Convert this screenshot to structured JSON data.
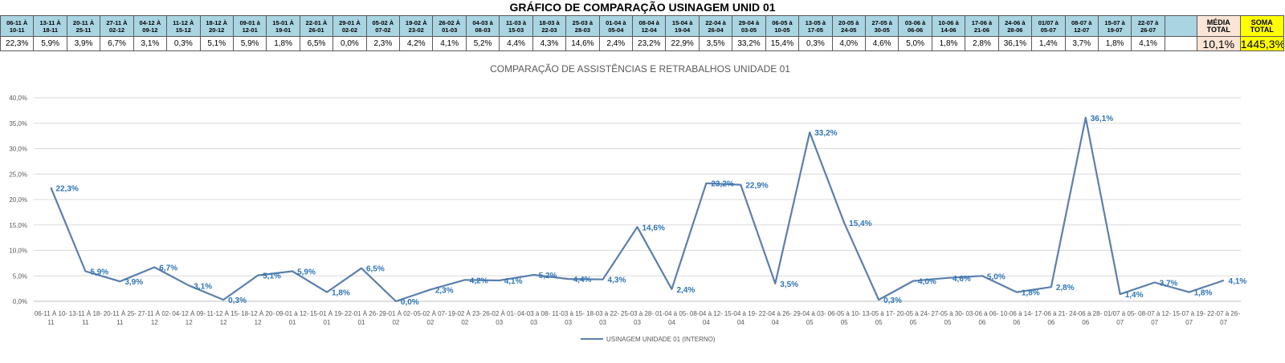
{
  "page_title": "GRÁFICO DE COMPARAÇÃO USINAGEM UNID 01",
  "table": {
    "headers": [
      [
        "06-11 À",
        "10-11"
      ],
      [
        "13-11 À",
        "18-11"
      ],
      [
        "20-11 À",
        "25-11"
      ],
      [
        "27-11 À",
        "02-12"
      ],
      [
        "04-12 À",
        "09-12"
      ],
      [
        "11-12 À",
        "15-12"
      ],
      [
        "18-12 À",
        "20-12"
      ],
      [
        "09-01 à",
        "12-01"
      ],
      [
        "15-01 À",
        "19-01"
      ],
      [
        "22-01 À",
        "26-01"
      ],
      [
        "29-01 À",
        "02-02"
      ],
      [
        "05-02 À",
        "07-02"
      ],
      [
        "19-02 À",
        "23-02"
      ],
      [
        "26-02 À",
        "01-03"
      ],
      [
        "04-03 à",
        "08-03"
      ],
      [
        "11-03 à",
        "15-03"
      ],
      [
        "18-03 à",
        "22-03"
      ],
      [
        "25-03 à",
        "28-03"
      ],
      [
        "01-04 à",
        "05-04"
      ],
      [
        "08-04 à",
        "12-04"
      ],
      [
        "15-04 à",
        "19-04"
      ],
      [
        "22-04 à",
        "26-04"
      ],
      [
        "29-04 à",
        "03-05"
      ],
      [
        "06-05 à",
        "10-05"
      ],
      [
        "13-05 à",
        "17-05"
      ],
      [
        "20-05 à",
        "24-05"
      ],
      [
        "27-05 à",
        "30-05"
      ],
      [
        "03-06 à",
        "06-06"
      ],
      [
        "10-06 à",
        "14-06"
      ],
      [
        "17-06 à",
        "21-06"
      ],
      [
        "24-06 à",
        "28-06"
      ],
      [
        "01/07 à",
        "05-07"
      ],
      [
        "08-07 à",
        "12-07"
      ],
      [
        "15-07 à",
        "19-07"
      ],
      [
        "22-07 à",
        "26-07"
      ]
    ],
    "values": [
      "22,3%",
      "5,9%",
      "3,9%",
      "6,7%",
      "3,1%",
      "0,3%",
      "5,1%",
      "5,9%",
      "1,8%",
      "6,5%",
      "0,0%",
      "2,3%",
      "4,2%",
      "4,1%",
      "5,2%",
      "4,4%",
      "4,3%",
      "14,6%",
      "2,4%",
      "23,2%",
      "22,9%",
      "3,5%",
      "33,2%",
      "15,4%",
      "0,3%",
      "4,0%",
      "4,6%",
      "5,0%",
      "1,8%",
      "2,8%",
      "36,1%",
      "1,4%",
      "3,7%",
      "1,8%",
      "4,1%"
    ],
    "media": {
      "label": [
        "MÉDIA",
        "TOTAL"
      ],
      "value": "10,1%"
    },
    "soma": {
      "label": [
        "SOMA",
        "TOTAL"
      ],
      "value": "1445,3%"
    }
  },
  "colors": {
    "series_line": "#5b7fad",
    "data_labels": "#2e75b6",
    "header_bg": "#a9d4e2",
    "media_bg": "#fbe5d6",
    "soma_bg": "#ffff00"
  },
  "chart_data": {
    "type": "line",
    "title": "COMPARAÇÃO DE ASSISTÊNCIAS E RETRABALHOS UNIDADE 01",
    "categories": [
      [
        "06-11 À 10-",
        "11"
      ],
      [
        "13-11 À 18-",
        "11"
      ],
      [
        "20-11 À 25-",
        "11"
      ],
      [
        "27-11 À 02-",
        "12"
      ],
      [
        "04-12 À 09-",
        "12"
      ],
      [
        "11-12 À 15-",
        "12"
      ],
      [
        "18-12 À 20-",
        "12"
      ],
      [
        "09-01 à 12-",
        "01"
      ],
      [
        "15-01 À 19-",
        "01"
      ],
      [
        "22-01 À 26-",
        "01"
      ],
      [
        "29-01 À 02-",
        "02"
      ],
      [
        "05-02 À 07-",
        "02"
      ],
      [
        "19-02 À 23-",
        "02"
      ],
      [
        "26-02 À 01-",
        "03"
      ],
      [
        "04-03 à 08-",
        "03"
      ],
      [
        "11-03 à 15-",
        "03"
      ],
      [
        "18-03 à 22-",
        "03"
      ],
      [
        "25-03 à 28-",
        "03"
      ],
      [
        "01-04 à 05-",
        "04"
      ],
      [
        "08-04 à 12-",
        "04"
      ],
      [
        "15-04 à 19-",
        "04"
      ],
      [
        "22-04 à 26-",
        "04"
      ],
      [
        "29-04 à 03-",
        "05"
      ],
      [
        "06-05 à 10-",
        "05"
      ],
      [
        "13-05 à 17-",
        "05"
      ],
      [
        "20-05 à 24-",
        "05"
      ],
      [
        "27-05 à 30-",
        "05"
      ],
      [
        "03-06 à 06-",
        "06"
      ],
      [
        "10-06 à 14-",
        "06"
      ],
      [
        "17-06 à 21-",
        "06"
      ],
      [
        "24-06 à 28-",
        "06"
      ],
      [
        "01/07 à 05-",
        "07"
      ],
      [
        "08-07 à 12-",
        "07"
      ],
      [
        "15-07 à 19-",
        "07"
      ],
      [
        "22-07 à 26-",
        "07"
      ]
    ],
    "series": [
      {
        "name": "USINAGEM UNIDADE 01 (INTERNO)",
        "values": [
          22.3,
          5.9,
          3.9,
          6.7,
          3.1,
          0.3,
          5.1,
          5.9,
          1.8,
          6.5,
          0.0,
          2.3,
          4.2,
          4.1,
          5.2,
          4.4,
          4.3,
          14.6,
          2.4,
          23.2,
          22.9,
          3.5,
          33.2,
          15.4,
          0.3,
          4.0,
          4.6,
          5.0,
          1.8,
          2.8,
          36.1,
          1.4,
          3.7,
          1.8,
          4.1
        ],
        "labels": [
          "22,3%",
          "5,9%",
          "3,9%",
          "6,7%",
          "3,1%",
          "0,3%",
          "5,1%",
          "5,9%",
          "1,8%",
          "6,5%",
          "0,0%",
          "2,3%",
          "4,2%",
          "4,1%",
          "5,2%",
          "4,4%",
          "4,3%",
          "14,6%",
          "2,4%",
          "23,2%",
          "22,9%",
          "3,5%",
          "33,2%",
          "15,4%",
          "0,3%",
          "4,0%",
          "4,6%",
          "5,0%",
          "1,8%",
          "2,8%",
          "36,1%",
          "1,4%",
          "3,7%",
          "1,8%",
          "4,1%"
        ]
      }
    ],
    "y_ticks": [
      "0,0%",
      "5,0%",
      "10,0%",
      "15,0%",
      "20,0%",
      "25,0%",
      "30,0%",
      "35,0%",
      "40,0%"
    ],
    "ylim": [
      0,
      40
    ],
    "grid": true,
    "legend": "bottom"
  }
}
